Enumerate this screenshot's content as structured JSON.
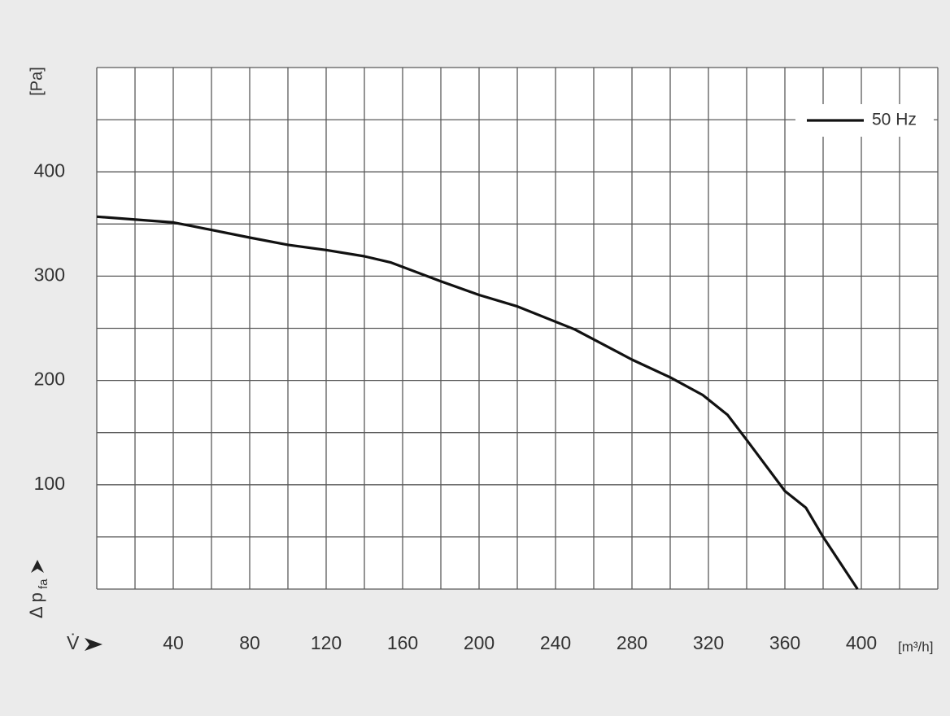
{
  "chart_data": {
    "type": "line",
    "y_label": "[Pa]",
    "y_symbol": "Δ p",
    "y_symbol_sub": "fa",
    "x_symbol": "V̇",
    "x_unit": "[m³/h]",
    "x": [
      0,
      40,
      50,
      80,
      100,
      120,
      140,
      154,
      180,
      200,
      220,
      250,
      280,
      300,
      317,
      330,
      340,
      360,
      371,
      380,
      398
    ],
    "series": [
      {
        "name": "50 Hz",
        "color": "#111111",
        "values": [
          357,
          351.5,
          348,
          337,
          330,
          325,
          319,
          313,
          295,
          282,
          271,
          249,
          220,
          203,
          186,
          167,
          143,
          94,
          78,
          50,
          0
        ]
      }
    ],
    "xlim": [
      0,
      440
    ],
    "ylim": [
      0,
      500
    ],
    "xticks": [
      40,
      80,
      120,
      160,
      200,
      240,
      280,
      320,
      360,
      400
    ],
    "yticks": [
      100,
      200,
      300,
      400
    ],
    "xgrid": [
      0,
      20,
      40,
      60,
      80,
      100,
      120,
      140,
      160,
      180,
      200,
      220,
      240,
      260,
      280,
      300,
      320,
      340,
      360,
      380,
      400,
      420,
      440
    ],
    "ygrid": [
      0,
      50,
      100,
      150,
      200,
      250,
      300,
      350,
      400,
      450,
      500
    ],
    "legend": "upper right"
  }
}
